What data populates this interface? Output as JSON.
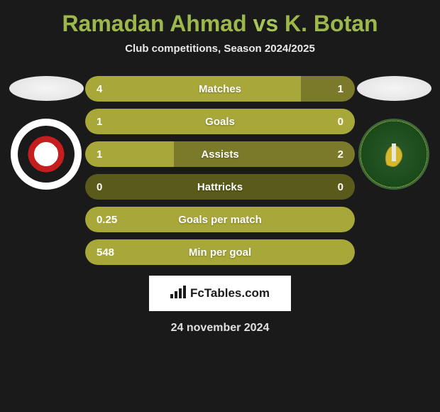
{
  "title": {
    "player1": "Ramadan Ahmad",
    "vs": "vs",
    "player2": "K. Botan"
  },
  "subtitle": "Club competitions, Season 2024/2025",
  "colors": {
    "title": "#9db84a",
    "bar_left": "#a8a83a",
    "bar_right": "#7a7a2a",
    "bar_bg": "#5a5a1a",
    "background": "#1a1a1a"
  },
  "stats": [
    {
      "label": "Matches",
      "left_val": "4",
      "right_val": "1",
      "left_pct": 80,
      "right_pct": 20
    },
    {
      "label": "Goals",
      "left_val": "1",
      "right_val": "0",
      "left_pct": 100,
      "right_pct": 0
    },
    {
      "label": "Assists",
      "left_val": "1",
      "right_val": "2",
      "left_pct": 33,
      "right_pct": 67
    },
    {
      "label": "Hattricks",
      "left_val": "0",
      "right_val": "0",
      "left_pct": 0,
      "right_pct": 0
    },
    {
      "label": "Goals per match",
      "left_val": "0.25",
      "right_val": "",
      "left_pct": 100,
      "right_pct": 0,
      "full_left": true
    },
    {
      "label": "Min per goal",
      "left_val": "548",
      "right_val": "",
      "left_pct": 100,
      "right_pct": 0,
      "full_left": true
    }
  ],
  "footer": {
    "site": "FcTables.com"
  },
  "date": "24 november 2024"
}
